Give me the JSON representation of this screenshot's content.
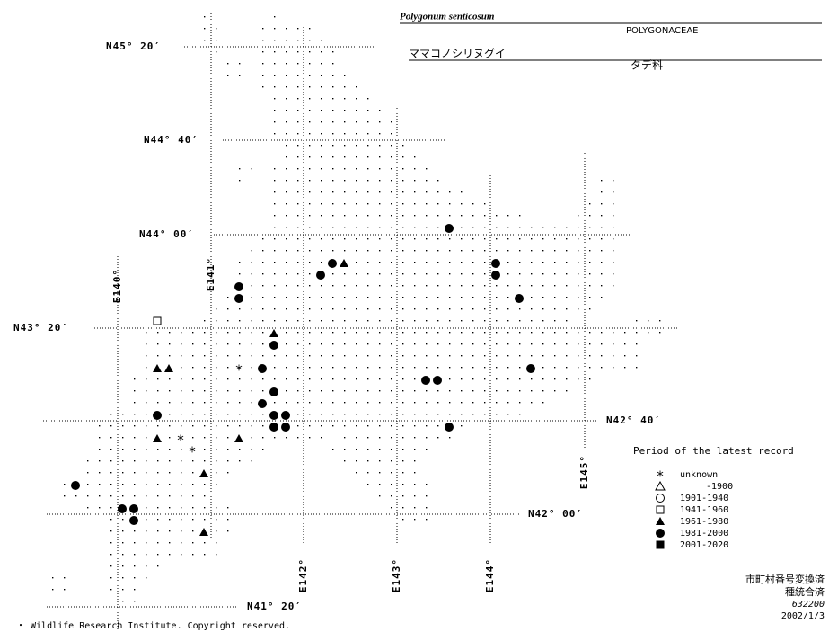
{
  "header": {
    "title": "Polygonum senticosum",
    "family": "POLYGONACEAE",
    "japanese_name": "ママコノシリヌグイ",
    "japanese_family": "タデ科"
  },
  "lat_labels": [
    "N45° 20′",
    "N44° 40′",
    "N44° 00′",
    "N43° 20′",
    "N42° 40′",
    "N42° 00′",
    "N41° 20′"
  ],
  "lon_labels": [
    "E140°",
    "E141°",
    "E142°",
    "E143°",
    "E144°",
    "E145°"
  ],
  "legend": {
    "title": "Period of the latest record",
    "items": [
      "unknown",
      "-1900",
      "1901-1940",
      "1941-1960",
      "1961-1980",
      "1981-2000",
      "2001-2020"
    ]
  },
  "footer": {
    "notes": [
      "市町村番号変換済",
      "種統合済",
      "632200",
      "2002/1/3"
    ],
    "copyright": "・ Wildlife Research Institute. Copyright reserved."
  }
}
